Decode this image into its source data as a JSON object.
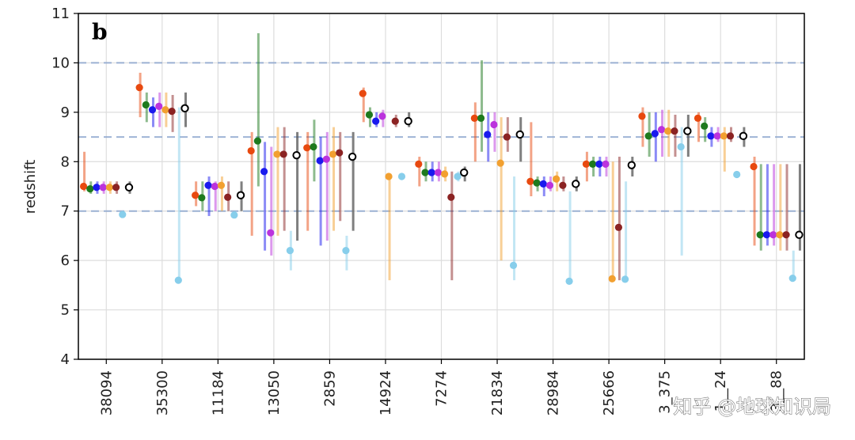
{
  "chart_data": {
    "type": "scatter",
    "panel_label": "b",
    "ylabel": "redshift",
    "xlabel": "",
    "ylim": [
      4,
      11
    ],
    "yticks": [
      4,
      5,
      6,
      7,
      8,
      9,
      10,
      11
    ],
    "grid": true,
    "reference_lines": [
      7,
      8.5,
      10
    ],
    "categories": [
      "38094",
      "35300",
      "11184",
      "13050",
      "2859",
      "14924",
      "7274",
      "21834",
      "28984",
      "25666",
      "35375",
      "10224",
      "31388"
    ],
    "category_ticks_visible": [
      "38094",
      "35300",
      "11184",
      "13050",
      "2859",
      "14924",
      "7274",
      "21834",
      "28984",
      "25666",
      "3_375",
      "1__24",
      "3__88"
    ],
    "series_colors": [
      "#e8490f",
      "#1e7a1e",
      "#1a1aee",
      "#bb33dd",
      "#f2a030",
      "#8b2323",
      "#87ceeb",
      "#000000"
    ],
    "series": [
      {
        "color": "#e8490f",
        "values": [
          7.5,
          9.5,
          7.32,
          8.22,
          8.28,
          9.38,
          7.95,
          8.88,
          7.6,
          7.95,
          8.92,
          8.88,
          7.9
        ],
        "low": [
          7.4,
          8.9,
          7.1,
          6.5,
          6.6,
          8.8,
          7.5,
          8.0,
          7.3,
          7.6,
          8.3,
          8.4,
          6.3
        ],
        "high": [
          8.2,
          9.8,
          7.6,
          8.6,
          8.6,
          9.5,
          8.1,
          9.2,
          8.8,
          8.2,
          9.1,
          9.0,
          8.1
        ]
      },
      {
        "color": "#1e7a1e",
        "values": [
          7.45,
          9.15,
          7.27,
          8.42,
          8.3,
          8.95,
          7.78,
          8.88,
          7.57,
          7.95,
          8.52,
          8.72,
          6.52
        ],
        "low": [
          7.35,
          8.8,
          7.0,
          7.5,
          7.6,
          8.7,
          7.6,
          8.2,
          7.4,
          7.7,
          8.1,
          8.4,
          6.2
        ],
        "high": [
          7.6,
          9.4,
          7.6,
          10.6,
          8.85,
          9.1,
          8.0,
          10.05,
          7.7,
          8.1,
          9.0,
          8.9,
          7.95
        ]
      },
      {
        "color": "#1a1aee",
        "values": [
          7.48,
          9.05,
          7.52,
          7.8,
          8.02,
          8.82,
          7.78,
          8.55,
          7.55,
          7.95,
          8.57,
          8.52,
          6.52
        ],
        "low": [
          7.35,
          8.7,
          6.9,
          6.2,
          6.3,
          8.7,
          7.6,
          8.0,
          7.3,
          7.7,
          8.0,
          8.3,
          6.3
        ],
        "high": [
          7.6,
          9.3,
          7.7,
          8.4,
          8.5,
          9.0,
          8.0,
          9.0,
          7.7,
          8.1,
          9.0,
          8.7,
          7.95
        ]
      },
      {
        "color": "#bb33dd",
        "values": [
          7.48,
          9.12,
          7.5,
          6.56,
          8.05,
          8.92,
          7.78,
          8.75,
          7.52,
          7.95,
          8.65,
          8.52,
          6.52
        ],
        "low": [
          7.35,
          8.7,
          7.0,
          6.1,
          6.4,
          8.7,
          7.6,
          8.2,
          7.4,
          7.7,
          8.1,
          8.4,
          6.3
        ],
        "high": [
          7.6,
          9.4,
          7.6,
          8.3,
          8.6,
          9.05,
          8.0,
          9.0,
          7.7,
          8.1,
          9.05,
          8.7,
          7.95
        ]
      },
      {
        "color": "#f2a030",
        "values": [
          7.48,
          9.05,
          7.52,
          8.15,
          8.15,
          7.7,
          7.75,
          7.97,
          7.65,
          5.63,
          8.62,
          8.52,
          6.52
        ],
        "low": [
          7.35,
          8.7,
          7.0,
          6.5,
          6.6,
          5.6,
          7.6,
          6.0,
          7.4,
          5.6,
          8.1,
          7.8,
          6.2
        ],
        "high": [
          7.6,
          9.4,
          7.7,
          8.7,
          8.7,
          7.7,
          7.9,
          8.9,
          7.8,
          8.0,
          9.05,
          8.7,
          7.95
        ]
      },
      {
        "color": "#8b2323",
        "values": [
          7.48,
          9.02,
          7.28,
          8.15,
          8.18,
          8.82,
          7.28,
          8.5,
          7.52,
          6.67,
          8.62,
          8.52,
          6.52
        ],
        "low": [
          7.35,
          8.6,
          7.0,
          6.6,
          6.8,
          8.7,
          5.6,
          8.2,
          7.4,
          5.6,
          8.1,
          8.4,
          6.2
        ],
        "high": [
          7.6,
          9.35,
          7.6,
          8.7,
          8.6,
          8.95,
          7.8,
          8.9,
          7.7,
          8.1,
          8.95,
          8.7,
          7.95
        ]
      },
      {
        "color": "#87ceeb",
        "values": [
          6.93,
          5.6,
          6.92,
          6.2,
          6.2,
          7.7,
          7.7,
          5.9,
          5.58,
          5.62,
          8.3,
          7.74,
          5.64
        ],
        "low": [
          6.93,
          5.6,
          6.85,
          5.8,
          5.8,
          7.7,
          7.6,
          5.6,
          5.58,
          5.62,
          6.1,
          7.74,
          5.64
        ],
        "high": [
          7.0,
          9.1,
          7.0,
          6.6,
          6.5,
          7.7,
          7.8,
          7.7,
          7.4,
          7.6,
          8.7,
          7.74,
          6.2
        ]
      },
      {
        "color": "#000000",
        "values": [
          7.48,
          9.08,
          7.32,
          8.13,
          8.1,
          8.82,
          7.78,
          8.55,
          7.55,
          7.93,
          8.62,
          8.52,
          6.52
        ],
        "low": [
          7.35,
          8.7,
          7.0,
          6.4,
          6.6,
          8.7,
          7.6,
          8.0,
          7.4,
          7.7,
          8.1,
          8.3,
          6.2
        ],
        "high": [
          7.6,
          9.4,
          7.6,
          8.6,
          8.6,
          9.0,
          7.9,
          8.9,
          7.7,
          8.1,
          8.95,
          8.7,
          7.95
        ],
        "marker": "open-circle"
      }
    ]
  },
  "watermark": "知乎 @地球知识局"
}
